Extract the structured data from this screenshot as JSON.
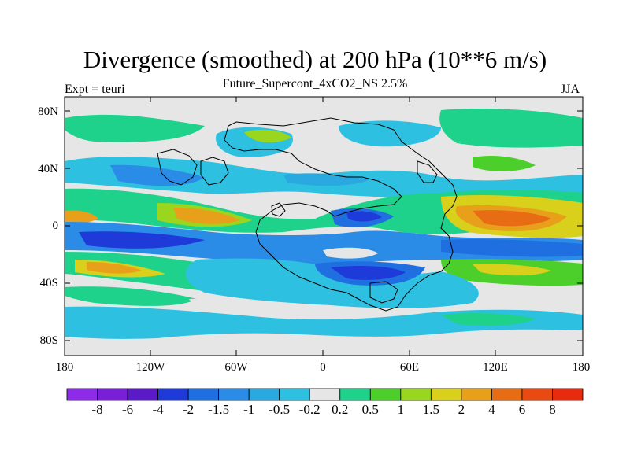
{
  "title": "Divergence (smoothed) at 200 hPa (10**6 m/s)",
  "left_label": "Expt = teuri",
  "center_label": "Future_Supercont_4xCO2_NS 2.5%",
  "right_label": "JJA",
  "y_ticks": [
    "80N",
    "40N",
    "0",
    "40S",
    "80S"
  ],
  "x_ticks": [
    "180",
    "120W",
    "60W",
    "0",
    "60E",
    "120E",
    "180"
  ],
  "colorbar": {
    "labels": [
      "-8",
      "-6",
      "-4",
      "-2",
      "-1.5",
      "-1",
      "-0.5",
      "-0.2",
      "0.2",
      "0.5",
      "1",
      "1.5",
      "2",
      "4",
      "6",
      "8"
    ],
    "colors": [
      "#8E2BE8",
      "#7A1FD8",
      "#5A1AC8",
      "#1E3AD8",
      "#1F6FE0",
      "#2A8CE6",
      "#2AA8E0",
      "#2DC0E0",
      "#E6E6E6",
      "#1ED28C",
      "#4CCF2A",
      "#9AD61E",
      "#D8D01A",
      "#E8A01A",
      "#E86C14",
      "#E84A12",
      "#E82A0E"
    ]
  }
}
